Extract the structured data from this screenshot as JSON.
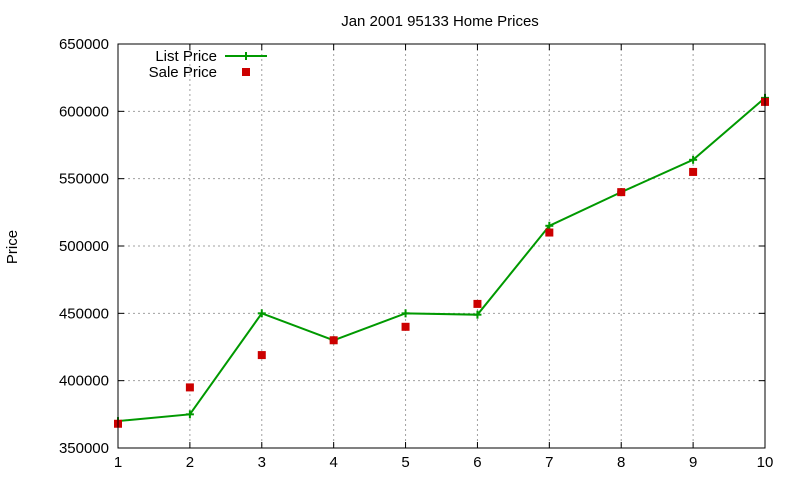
{
  "chart_data": {
    "type": "line",
    "title": "Jan 2001 95133 Home Prices",
    "xlabel": "",
    "ylabel": "Price",
    "x": [
      1,
      2,
      3,
      4,
      5,
      6,
      7,
      8,
      9,
      10
    ],
    "xlim": [
      1,
      10
    ],
    "ylim": [
      350000,
      650000
    ],
    "xticks": [
      "1",
      "2",
      "3",
      "4",
      "5",
      "6",
      "7",
      "8",
      "9",
      "10"
    ],
    "yticks": [
      "350000",
      "400000",
      "450000",
      "500000",
      "550000",
      "600000",
      "650000"
    ],
    "grid": true,
    "legend_position": "top-left",
    "series": [
      {
        "name": "List Price",
        "type": "line",
        "marker": "plus",
        "color": "#009900",
        "values": [
          370000,
          375000,
          450000,
          430000,
          450000,
          449000,
          515000,
          540000,
          564000,
          610000
        ]
      },
      {
        "name": "Sale Price",
        "type": "scatter",
        "marker": "square",
        "color": "#cc0000",
        "values": [
          368000,
          395000,
          419000,
          430000,
          440000,
          457000,
          510000,
          540000,
          555000,
          607000
        ]
      }
    ]
  }
}
